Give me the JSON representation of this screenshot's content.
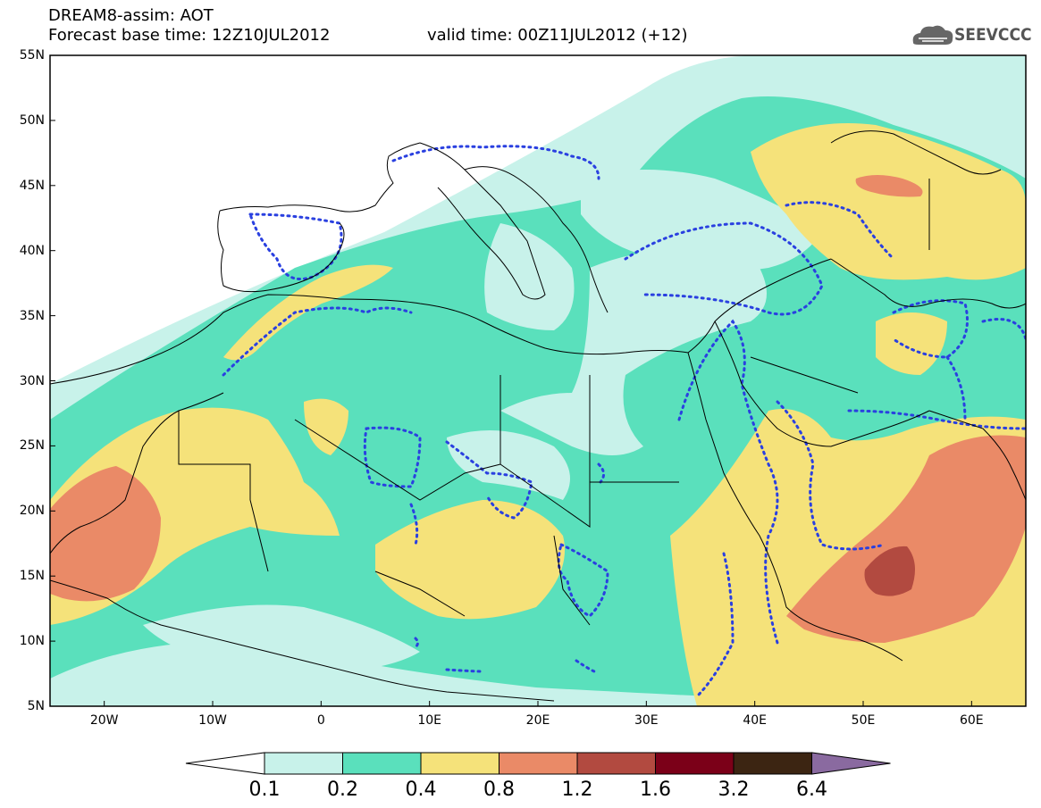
{
  "header": {
    "title_line1": "DREAM8-assim: AOT",
    "title_line2": "Forecast base time: 12Z10JUL2012",
    "valid_time": "valid time: 00Z11JUL2012 (+12)",
    "logo_text": "SEEVCCC"
  },
  "map": {
    "lat_labels": [
      "55N",
      "50N",
      "45N",
      "40N",
      "35N",
      "30N",
      "25N",
      "20N",
      "15N",
      "10N",
      "5N"
    ],
    "lon_labels": [
      "20W",
      "10W",
      "0",
      "10E",
      "20E",
      "30E",
      "40E",
      "50E",
      "60E"
    ],
    "variable": "AOT",
    "extent": {
      "lon_min": -25,
      "lon_max": 65,
      "lat_min": 5,
      "lat_max": 55
    }
  },
  "colorbar": {
    "levels": [
      "0.1",
      "0.2",
      "0.4",
      "0.8",
      "1.2",
      "1.6",
      "3.2",
      "6.4"
    ],
    "colors": [
      "#c8f2ea",
      "#5ae0bc",
      "#f5e27a",
      "#ea8a67",
      "#b24a40",
      "#7b0018",
      "#3c2512",
      "#8a6aa0"
    ],
    "below_color": "#ffffff"
  },
  "icons": {
    "logo": "cloud-logo-icon",
    "contours": "dotted-contour-lines"
  }
}
